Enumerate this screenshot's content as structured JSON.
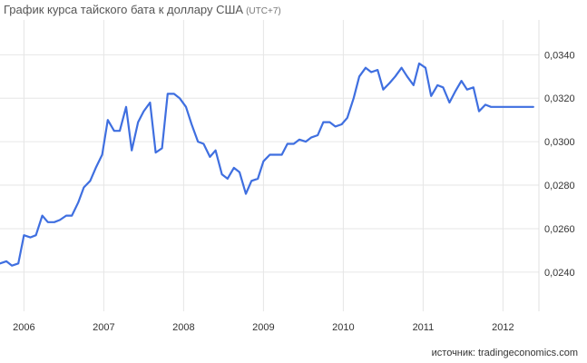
{
  "header": {
    "title": "График курса тайского бата к доллару США",
    "subtitle": "(UTC+7)"
  },
  "footer": {
    "source": "источник: tradingeconomics.com"
  },
  "chart_data": {
    "type": "line",
    "title": "График курса тайского бата к доллару США",
    "subtitle": "(UTC+7)",
    "xlabel": "",
    "ylabel": "",
    "x_ticks": [
      "2006",
      "2007",
      "2008",
      "2009",
      "2010",
      "2011",
      "2012"
    ],
    "y_ticks": [
      "0,0240",
      "0,0260",
      "0,0280",
      "0,0300",
      "0,0320",
      "0,0340"
    ],
    "xlim": [
      2005.7,
      2012.45
    ],
    "ylim": [
      0.0222,
      0.0356
    ],
    "grid": true,
    "color": "#3f6fe0",
    "series": [
      {
        "x": [
          2005.7,
          2005.78,
          2005.85,
          2005.93,
          2006.0,
          2006.08,
          2006.15,
          2006.23,
          2006.3,
          2006.38,
          2006.45,
          2006.53,
          2006.6,
          2006.68,
          2006.75,
          2006.83,
          2006.9,
          2006.98,
          2007.05,
          2007.13,
          2007.2,
          2007.28,
          2007.35,
          2007.43,
          2007.5,
          2007.58,
          2007.65,
          2007.73,
          2007.8,
          2007.88,
          2007.95,
          2008.03,
          2008.1,
          2008.18,
          2008.25,
          2008.33,
          2008.4,
          2008.48,
          2008.55,
          2008.63,
          2008.7,
          2008.78,
          2008.85,
          2008.93,
          2009.0,
          2009.08,
          2009.15,
          2009.23,
          2009.3,
          2009.38,
          2009.45,
          2009.53,
          2009.6,
          2009.68,
          2009.75,
          2009.83,
          2009.9,
          2009.98,
          2010.05,
          2010.13,
          2010.2,
          2010.28,
          2010.35,
          2010.43,
          2010.5,
          2010.58,
          2010.65,
          2010.73,
          2010.8,
          2010.88,
          2010.95,
          2011.03,
          2011.1,
          2011.18,
          2011.25,
          2011.33,
          2011.4,
          2011.48,
          2011.55,
          2011.63,
          2011.7,
          2011.78,
          2011.85,
          2011.93,
          2012.0,
          2012.08,
          2012.15,
          2012.23,
          2012.3,
          2012.38
        ],
        "values": [
          0.0244,
          0.0245,
          0.0243,
          0.0244,
          0.0257,
          0.0256,
          0.0257,
          0.0266,
          0.0263,
          0.0263,
          0.0264,
          0.0266,
          0.0266,
          0.0272,
          0.0279,
          0.0282,
          0.0288,
          0.0294,
          0.031,
          0.0305,
          0.0305,
          0.0316,
          0.0296,
          0.0309,
          0.0314,
          0.0318,
          0.0295,
          0.0297,
          0.0322,
          0.0322,
          0.032,
          0.0316,
          0.0308,
          0.03,
          0.0299,
          0.0293,
          0.0296,
          0.0285,
          0.0283,
          0.0288,
          0.0286,
          0.0276,
          0.0282,
          0.0283,
          0.0291,
          0.0294,
          0.0294,
          0.0294,
          0.0299,
          0.0299,
          0.0301,
          0.03,
          0.0302,
          0.0303,
          0.0309,
          0.0309,
          0.0307,
          0.0308,
          0.0311,
          0.032,
          0.033,
          0.0334,
          0.0332,
          0.0333,
          0.0324,
          0.0327,
          0.033,
          0.0334,
          0.033,
          0.0326,
          0.0336,
          0.0334,
          0.0321,
          0.0326,
          0.0325,
          0.0318,
          0.0323,
          0.0328,
          0.0324,
          0.0325,
          0.0314,
          0.0317,
          0.0316,
          0.0316,
          0.0316,
          0.0316,
          0.0316,
          0.0316,
          0.0316,
          0.0316
        ]
      }
    ]
  }
}
